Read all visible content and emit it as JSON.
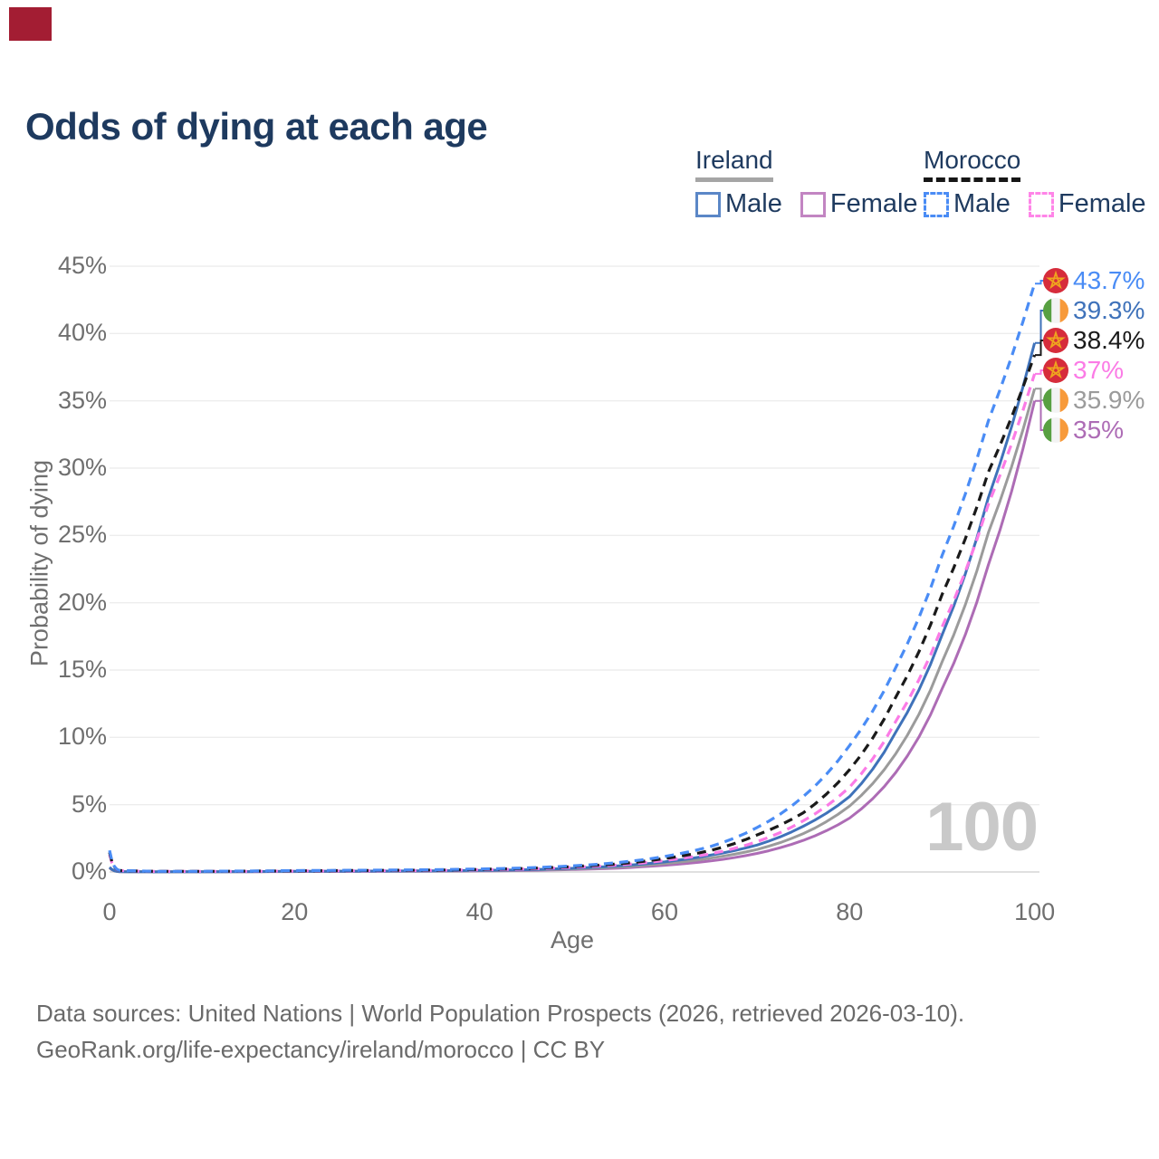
{
  "page": {
    "marker_color": "#a31d33",
    "background": "#ffffff",
    "title_color": "#1e3a5f"
  },
  "title": "Odds of dying at each age",
  "legend": {
    "groups": [
      {
        "label": "Ireland",
        "line_style": "solid",
        "underline_color": "#a5a5a5",
        "items": [
          {
            "label": "Male",
            "box_color": "#5b87c7"
          },
          {
            "label": "Female",
            "box_color": "#c285c2"
          }
        ]
      },
      {
        "label": "Morocco",
        "line_style": "dashed",
        "underline_color": "#161616",
        "items": [
          {
            "label": "Male",
            "box_color": "#4a8cf5"
          },
          {
            "label": "Female",
            "box_color": "#ff85e8"
          }
        ]
      }
    ]
  },
  "watermark": "100",
  "footer": {
    "line1": "Data sources: United Nations | World Population Prospects (2026, retrieved 2026-03-10).",
    "line2": "GeoRank.org/life-expectancy/ireland/morocco | CC BY"
  },
  "chart_data": {
    "type": "line",
    "title": "Odds of dying at each age",
    "xlabel": "Age",
    "ylabel": "Probability of dying",
    "xlim": [
      0,
      100
    ],
    "ylim": [
      0,
      45
    ],
    "x_ticks": [
      0,
      20,
      40,
      60,
      80,
      100
    ],
    "y_ticks": [
      0,
      5,
      10,
      15,
      20,
      25,
      30,
      35,
      40,
      45
    ],
    "y_tick_suffix": "%",
    "grid": "horizontal",
    "legend_position": "top-right",
    "x": [
      0,
      1,
      5,
      10,
      15,
      20,
      25,
      30,
      35,
      40,
      45,
      50,
      55,
      60,
      65,
      70,
      75,
      80,
      85,
      90,
      95,
      100
    ],
    "series": [
      {
        "name": "Morocco Male",
        "country": "Morocco",
        "sex": "male",
        "flag": "morocco",
        "color": "#4a8cf5",
        "dash": true,
        "end_label": "43.7%",
        "values": [
          1.6,
          0.12,
          0.05,
          0.05,
          0.07,
          0.1,
          0.12,
          0.14,
          0.17,
          0.22,
          0.3,
          0.45,
          0.7,
          1.15,
          1.9,
          3.3,
          5.6,
          9.4,
          15.2,
          23.5,
          33.5,
          43.7
        ]
      },
      {
        "name": "Ireland Male",
        "country": "Ireland",
        "sex": "male",
        "flag": "ireland",
        "color": "#3f72ba",
        "dash": false,
        "end_label": "39.3%",
        "values": [
          0.35,
          0.03,
          0.01,
          0.012,
          0.03,
          0.05,
          0.06,
          0.07,
          0.09,
          0.12,
          0.17,
          0.27,
          0.45,
          0.75,
          1.25,
          2.0,
          3.4,
          5.6,
          10.4,
          17.6,
          27.8,
          39.3
        ]
      },
      {
        "name": "Morocco Both sexes",
        "country": "Morocco",
        "sex": "both",
        "flag": "morocco",
        "color": "#1a1a1a",
        "dash": true,
        "end_label": "38.4%",
        "values": [
          1.45,
          0.11,
          0.045,
          0.045,
          0.06,
          0.08,
          0.1,
          0.12,
          0.14,
          0.19,
          0.26,
          0.4,
          0.6,
          1.0,
          1.6,
          2.75,
          4.4,
          7.6,
          13.0,
          20.6,
          29.7,
          38.4
        ]
      },
      {
        "name": "Morocco Female",
        "country": "Morocco",
        "sex": "female",
        "flag": "morocco",
        "color": "#fb7be6",
        "dash": true,
        "end_label": "37%",
        "values": [
          1.3,
          0.1,
          0.04,
          0.04,
          0.05,
          0.07,
          0.08,
          0.1,
          0.12,
          0.16,
          0.22,
          0.34,
          0.52,
          0.85,
          1.35,
          2.25,
          3.8,
          6.3,
          11.2,
          18.2,
          27.3,
          37.0
        ]
      },
      {
        "name": "Ireland Both sexes",
        "country": "Ireland",
        "sex": "both",
        "flag": "ireland",
        "color": "#9b9b9b",
        "dash": false,
        "end_label": "35.9%",
        "values": [
          0.32,
          0.027,
          0.009,
          0.011,
          0.025,
          0.04,
          0.05,
          0.06,
          0.075,
          0.1,
          0.14,
          0.22,
          0.37,
          0.62,
          1.03,
          1.67,
          2.85,
          4.9,
          8.8,
          15.6,
          25.2,
          35.9
        ]
      },
      {
        "name": "Ireland Female",
        "country": "Ireland",
        "sex": "female",
        "flag": "ireland",
        "color": "#ad6cb5",
        "dash": false,
        "end_label": "35%",
        "values": [
          0.3,
          0.025,
          0.009,
          0.01,
          0.02,
          0.03,
          0.035,
          0.045,
          0.06,
          0.08,
          0.11,
          0.18,
          0.29,
          0.5,
          0.82,
          1.38,
          2.35,
          4.0,
          7.4,
          13.6,
          22.8,
          35.0
        ]
      }
    ]
  }
}
